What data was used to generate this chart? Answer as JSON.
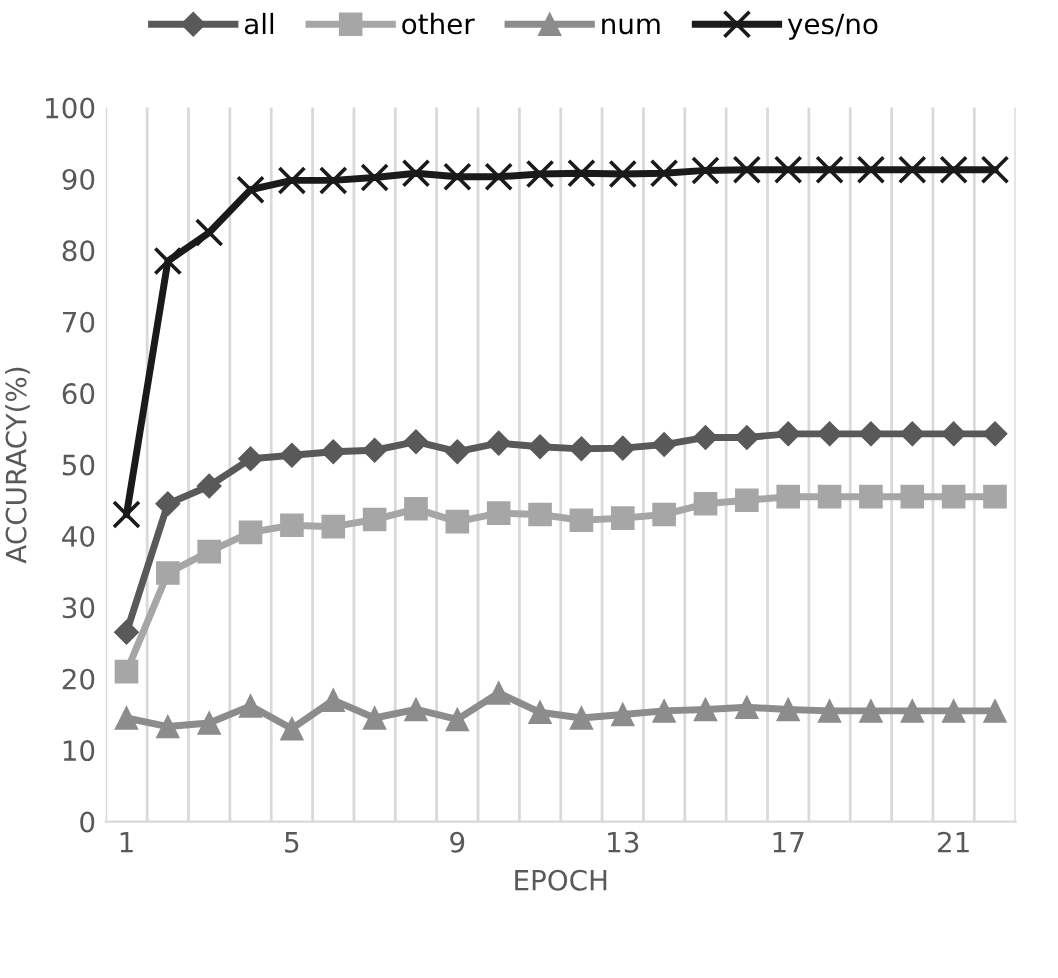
{
  "chart_data": {
    "type": "line",
    "xlabel": "EPOCH",
    "ylabel": "ACCURACY(%)",
    "categories": [
      "1",
      null,
      null,
      null,
      "5",
      null,
      null,
      null,
      "9",
      null,
      null,
      null,
      "13",
      null,
      null,
      null,
      "17",
      null,
      null,
      null,
      "21",
      null
    ],
    "ylim": [
      0,
      100
    ],
    "yticks": [
      0,
      10,
      20,
      30,
      40,
      50,
      60,
      70,
      80,
      90,
      100
    ],
    "grid": "x",
    "legend": "top",
    "series": [
      {
        "name": "all",
        "color": "#595959",
        "marker": "diamond",
        "values": [
          26.5,
          44.5,
          47,
          50.8,
          51.3,
          51.8,
          52,
          53.2,
          51.8,
          53,
          52.5,
          52.2,
          52.3,
          52.8,
          53.8,
          53.8,
          54.3,
          54.3,
          54.3,
          54.3,
          54.3,
          54.3
        ]
      },
      {
        "name": "other",
        "color": "#a6a6a6",
        "marker": "square",
        "values": [
          21,
          34.8,
          37.8,
          40.5,
          41.5,
          41.3,
          42.3,
          43.8,
          42,
          43.2,
          43,
          42.2,
          42.5,
          43,
          44.5,
          45,
          45.5,
          45.5,
          45.5,
          45.5,
          45.5,
          45.5
        ]
      },
      {
        "name": "num",
        "color": "#8c8c8c",
        "marker": "triangle",
        "values": [
          14.5,
          13.3,
          13.8,
          16.2,
          13,
          17,
          14.5,
          15.7,
          14.3,
          18,
          15.3,
          14.5,
          15,
          15.5,
          15.7,
          16,
          15.7,
          15.5,
          15.5,
          15.5,
          15.5,
          15.5
        ]
      },
      {
        "name": "yes/no",
        "color": "#1a1a1a",
        "marker": "cross",
        "values": [
          43,
          78.5,
          82.5,
          88.5,
          89.8,
          89.8,
          90.2,
          90.8,
          90.3,
          90.3,
          90.7,
          90.8,
          90.7,
          90.8,
          91.2,
          91.3,
          91.3,
          91.3,
          91.3,
          91.3,
          91.3,
          91.3
        ]
      }
    ]
  }
}
